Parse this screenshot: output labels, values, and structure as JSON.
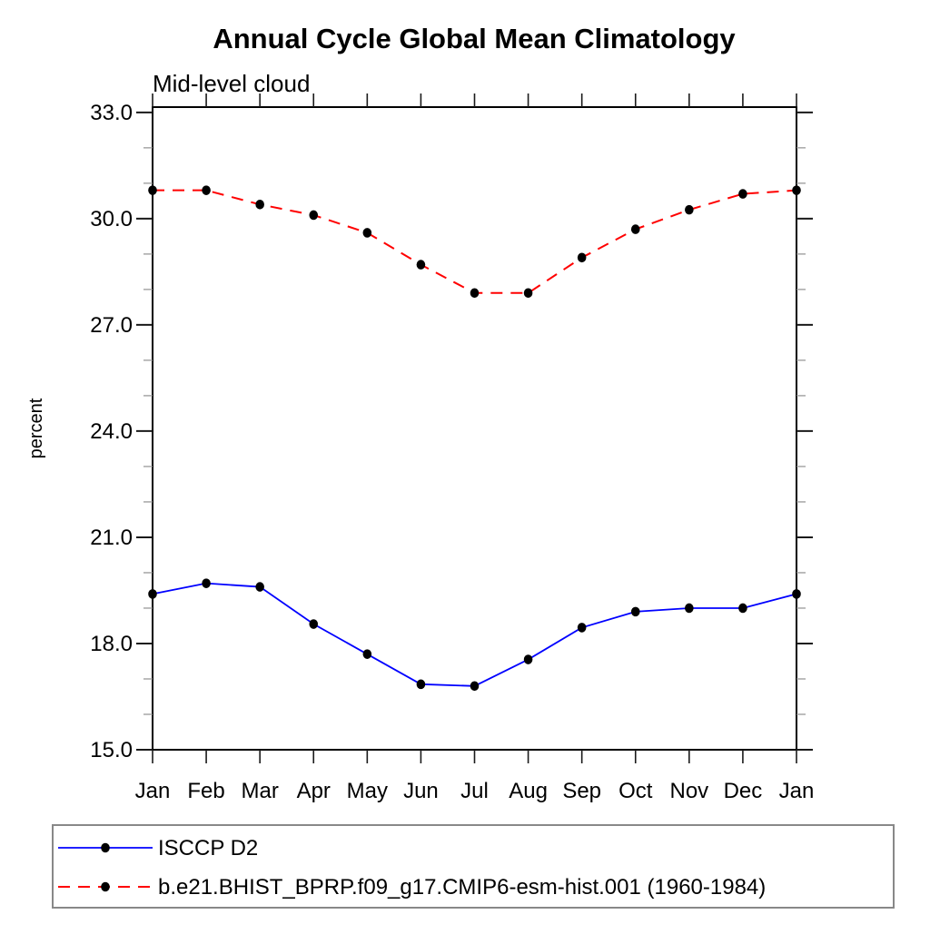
{
  "chart_data": {
    "type": "line",
    "title": "Annual Cycle Global Mean Climatology",
    "subtitle": "Mid-level cloud",
    "ylabel": "percent",
    "xlabel": "",
    "categories": [
      "Jan",
      "Feb",
      "Mar",
      "Apr",
      "May",
      "Jun",
      "Jul",
      "Aug",
      "Sep",
      "Oct",
      "Nov",
      "Dec",
      "Jan"
    ],
    "ylim": [
      15.0,
      33.15
    ],
    "y_major_ticks": [
      15.0,
      18.0,
      21.0,
      24.0,
      27.0,
      30.0,
      33.0
    ],
    "y_tick_labels": [
      "15.0",
      "18.0",
      "21.0",
      "24.0",
      "27.0",
      "30.0",
      "33.0"
    ],
    "y_minor_tick_step": 1.0,
    "grid": false,
    "legend_position": "bottom-left-box",
    "series": [
      {
        "name": "ISCCP D2",
        "color": "#0000ff",
        "line_style": "solid",
        "marker": "filled-circle",
        "marker_color": "#000000",
        "values": [
          19.4,
          19.7,
          19.6,
          18.55,
          17.7,
          16.85,
          16.8,
          17.55,
          18.45,
          18.9,
          19.0,
          19.0,
          19.4
        ]
      },
      {
        "name": "b.e21.BHIST_BPRP.f09_g17.CMIP6-esm-hist.001 (1960-1984)",
        "color": "#ff0000",
        "line_style": "dashed",
        "marker": "filled-circle",
        "marker_color": "#000000",
        "values": [
          30.8,
          30.8,
          30.4,
          30.1,
          29.6,
          28.7,
          27.9,
          27.9,
          28.9,
          29.7,
          30.25,
          30.7,
          30.8
        ]
      }
    ]
  },
  "colors": {
    "background": "#ffffff",
    "axis": "#000000",
    "major_tick": "#1a1a1a",
    "minor_tick": "#999999",
    "legend_border": "#888888",
    "text": "#000000"
  }
}
